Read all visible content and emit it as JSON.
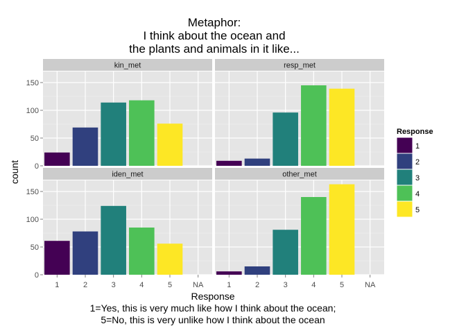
{
  "chart_data": {
    "type": "bar",
    "title": [
      "Metaphor:",
      "I think about the ocean and",
      "the plants and animals in it like..."
    ],
    "xlabel": [
      "Response",
      "1=Yes, this is very much like how I think about the ocean;",
      "5=No, this is very unlike how I think about the ocean"
    ],
    "ylabel": "count",
    "categories": [
      "1",
      "2",
      "3",
      "4",
      "5",
      "NA"
    ],
    "yticks": [
      0,
      50,
      100,
      150
    ],
    "ylim": [
      0,
      170
    ],
    "grid": true,
    "legend": {
      "title": "Response",
      "placement": "right",
      "items": [
        {
          "label": "1",
          "color": "#440154"
        },
        {
          "label": "2",
          "color": "#30407e"
        },
        {
          "label": "3",
          "color": "#21807b"
        },
        {
          "label": "4",
          "color": "#4ec157"
        },
        {
          "label": "5",
          "color": "#fde725"
        }
      ]
    },
    "facets": [
      {
        "name": "kin_met",
        "values": [
          24,
          69,
          114,
          118,
          76,
          0
        ]
      },
      {
        "name": "resp_met",
        "values": [
          9,
          13,
          96,
          145,
          139,
          0
        ]
      },
      {
        "name": "iden_met",
        "values": [
          61,
          78,
          124,
          85,
          56,
          0
        ]
      },
      {
        "name": "other_met",
        "values": [
          6,
          15,
          81,
          140,
          163,
          0
        ]
      }
    ]
  }
}
